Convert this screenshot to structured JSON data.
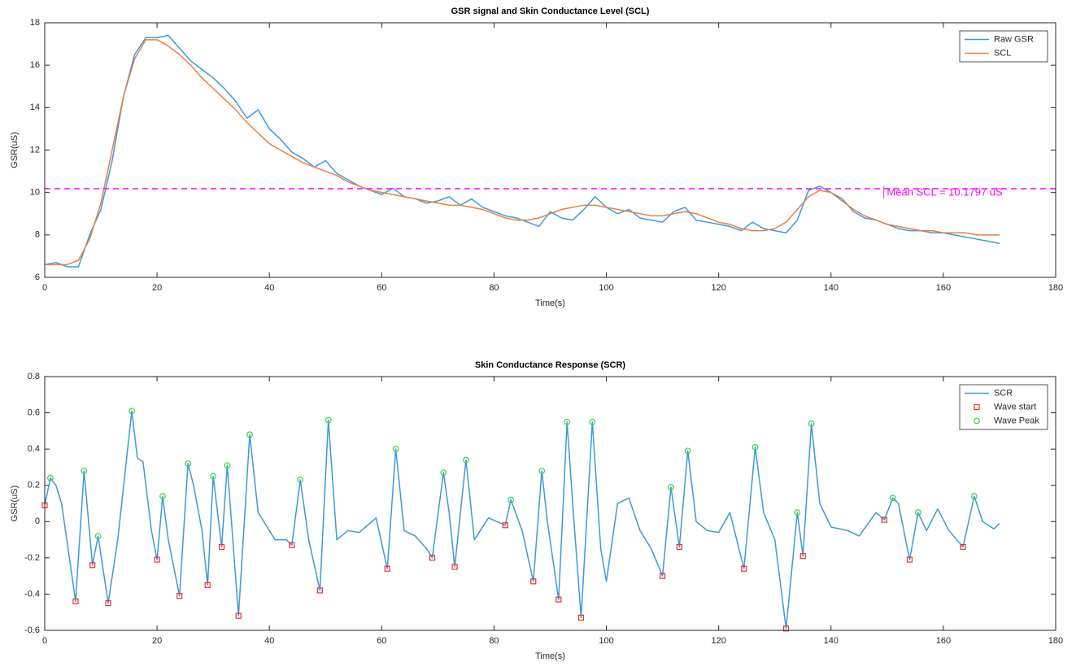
{
  "chart_data": [
    {
      "type": "line",
      "title": "GSR signal and Skin Conductance Level (SCL)",
      "xlabel": "Time(s)",
      "ylabel": "GSR(uS)",
      "xlim": [
        0,
        180
      ],
      "ylim": [
        6,
        18
      ],
      "xticks": [
        0,
        20,
        40,
        60,
        80,
        100,
        120,
        140,
        160,
        180
      ],
      "yticks": [
        6,
        8,
        10,
        12,
        14,
        16,
        18
      ],
      "legend": "northeast",
      "x": [
        0,
        2,
        4,
        6,
        8,
        10,
        12,
        14,
        16,
        18,
        20,
        22,
        24,
        26,
        28,
        30,
        32,
        34,
        36,
        38,
        40,
        42,
        44,
        46,
        48,
        50,
        52,
        54,
        56,
        58,
        60,
        62,
        64,
        66,
        68,
        70,
        72,
        74,
        76,
        78,
        80,
        82,
        84,
        86,
        88,
        90,
        92,
        94,
        96,
        98,
        100,
        102,
        104,
        106,
        108,
        110,
        112,
        114,
        116,
        118,
        120,
        122,
        124,
        126,
        128,
        130,
        132,
        134,
        136,
        138,
        140,
        142,
        144,
        146,
        148,
        150,
        152,
        154,
        156,
        158,
        160,
        162,
        164,
        166,
        168,
        170
      ],
      "series": [
        {
          "name": "Raw GSR",
          "color": "#3d9ad6",
          "values": [
            6.6,
            6.7,
            6.5,
            6.5,
            8.0,
            9.2,
            11.5,
            14.5,
            16.5,
            17.3,
            17.3,
            17.4,
            16.8,
            16.2,
            15.8,
            15.4,
            14.9,
            14.3,
            13.5,
            13.9,
            13.0,
            12.5,
            11.9,
            11.6,
            11.2,
            11.5,
            10.9,
            10.6,
            10.3,
            10.1,
            9.9,
            10.2,
            9.8,
            9.7,
            9.5,
            9.6,
            9.8,
            9.4,
            9.7,
            9.3,
            9.1,
            8.9,
            8.8,
            8.6,
            8.4,
            9.1,
            8.8,
            8.7,
            9.2,
            9.8,
            9.3,
            9.0,
            9.2,
            8.8,
            8.7,
            8.6,
            9.1,
            9.3,
            8.7,
            8.6,
            8.5,
            8.4,
            8.2,
            8.6,
            8.3,
            8.2,
            8.1,
            8.7,
            10.1,
            10.3,
            10.0,
            9.7,
            9.1,
            8.8,
            8.7,
            8.5,
            8.3,
            8.2,
            8.2,
            8.1,
            8.1,
            8.0,
            7.9,
            7.8,
            7.7,
            7.6
          ]
        },
        {
          "name": "SCL",
          "color": "#e87f45",
          "values": [
            6.6,
            6.6,
            6.6,
            6.8,
            7.8,
            9.5,
            12.0,
            14.5,
            16.3,
            17.2,
            17.2,
            16.9,
            16.5,
            16.0,
            15.4,
            14.9,
            14.4,
            13.9,
            13.3,
            12.8,
            12.3,
            12.0,
            11.7,
            11.4,
            11.2,
            11.0,
            10.8,
            10.5,
            10.3,
            10.1,
            10.0,
            9.9,
            9.8,
            9.7,
            9.6,
            9.5,
            9.4,
            9.4,
            9.3,
            9.2,
            9.0,
            8.8,
            8.7,
            8.7,
            8.8,
            9.0,
            9.2,
            9.3,
            9.4,
            9.4,
            9.3,
            9.2,
            9.1,
            9.0,
            8.9,
            8.9,
            9.0,
            9.1,
            9.0,
            8.8,
            8.6,
            8.5,
            8.3,
            8.2,
            8.2,
            8.3,
            8.6,
            9.2,
            9.8,
            10.1,
            10.0,
            9.6,
            9.2,
            8.9,
            8.7,
            8.5,
            8.4,
            8.3,
            8.2,
            8.2,
            8.1,
            8.1,
            8.1,
            8.0,
            8.0,
            8.0
          ]
        }
      ],
      "mean_line": {
        "value": 10.1797,
        "color": "#ff00ff",
        "label": "Mean SCL = 10.1797 uS"
      }
    },
    {
      "type": "line",
      "title": "Skin Conductance Response (SCR)",
      "xlabel": "Time(s)",
      "ylabel": "GSR(uS)",
      "xlim": [
        0,
        180
      ],
      "ylim": [
        -0.6,
        0.8
      ],
      "xticks": [
        0,
        20,
        40,
        60,
        80,
        100,
        120,
        140,
        160,
        180
      ],
      "yticks": [
        -0.6,
        -0.4,
        -0.2,
        0,
        0.2,
        0.4,
        0.6,
        0.8
      ],
      "legend": "northeast",
      "series": [
        {
          "name": "SCR",
          "color": "#3d9ad6",
          "marker": "none",
          "x": [
            0,
            1,
            2,
            3,
            5.5,
            7,
            8.5,
            9.5,
            11.3,
            13,
            15.5,
            16.5,
            17.5,
            19,
            20,
            21,
            22,
            24,
            25.5,
            26.5,
            28,
            29,
            30,
            31.5,
            32.5,
            34.5,
            36.5,
            38,
            40,
            41,
            43,
            44,
            45.5,
            47,
            49,
            50.5,
            52,
            54,
            56,
            59,
            61,
            62.5,
            64,
            66,
            68,
            69,
            71,
            72,
            73,
            75,
            76.5,
            79,
            82,
            83,
            85,
            87,
            88.5,
            89.5,
            91.5,
            93,
            94,
            95.5,
            97.5,
            99,
            100,
            102,
            104,
            106,
            108,
            110,
            111.5,
            113,
            114.5,
            116,
            118,
            120,
            122,
            124.5,
            126.5,
            128,
            130,
            132,
            134,
            135,
            136.5,
            138,
            140,
            143,
            145,
            148,
            149.5,
            151,
            152,
            154,
            155.5,
            157,
            159,
            161,
            163.5,
            165.5,
            167,
            169,
            170
          ],
          "values": [
            0.09,
            0.24,
            0.2,
            0.1,
            -0.44,
            0.28,
            -0.24,
            -0.08,
            -0.45,
            -0.1,
            0.61,
            0.35,
            0.33,
            -0.05,
            -0.21,
            0.14,
            -0.1,
            -0.41,
            0.32,
            0.2,
            -0.05,
            -0.35,
            0.25,
            -0.14,
            0.31,
            -0.52,
            0.48,
            0.05,
            -0.05,
            -0.1,
            -0.1,
            -0.13,
            0.23,
            -0.1,
            -0.38,
            0.56,
            -0.1,
            -0.05,
            -0.06,
            0.02,
            -0.26,
            0.4,
            -0.05,
            -0.08,
            -0.15,
            -0.2,
            0.27,
            0.05,
            -0.25,
            0.34,
            -0.1,
            0.02,
            -0.02,
            0.12,
            -0.05,
            -0.33,
            0.28,
            0.0,
            -0.43,
            0.55,
            0.1,
            -0.53,
            0.55,
            -0.15,
            -0.33,
            0.1,
            0.13,
            -0.05,
            -0.15,
            -0.3,
            0.19,
            -0.14,
            0.39,
            0.0,
            -0.05,
            -0.06,
            0.05,
            -0.26,
            0.41,
            0.05,
            -0.1,
            -0.59,
            0.05,
            -0.19,
            0.54,
            0.1,
            -0.03,
            -0.05,
            -0.08,
            0.05,
            0.01,
            0.13,
            0.1,
            -0.21,
            0.05,
            -0.05,
            0.07,
            -0.05,
            -0.14,
            0.14,
            0.0,
            -0.04,
            -0.01
          ]
        },
        {
          "name": "Wave start",
          "color": "#e8312b",
          "marker": "square",
          "x": [
            0,
            5.5,
            8.5,
            11.3,
            20,
            24,
            29,
            31.5,
            34.5,
            44,
            49,
            61,
            69,
            73,
            82,
            87,
            91.5,
            95.5,
            110,
            113,
            124.5,
            132,
            135,
            149.5,
            154,
            163.5
          ],
          "values": [
            0.09,
            -0.44,
            -0.24,
            -0.45,
            -0.21,
            -0.41,
            -0.35,
            -0.14,
            -0.52,
            -0.13,
            -0.38,
            -0.26,
            -0.2,
            -0.25,
            -0.02,
            -0.33,
            -0.43,
            -0.53,
            -0.3,
            -0.14,
            -0.26,
            -0.59,
            -0.19,
            0.01,
            -0.21,
            -0.14
          ]
        },
        {
          "name": "Wave Peak",
          "color": "#3cd43c",
          "marker": "circle",
          "x": [
            1,
            7,
            9.5,
            15.5,
            21,
            25.5,
            30,
            32.5,
            36.5,
            45.5,
            50.5,
            62.5,
            71,
            75,
            83,
            88.5,
            93,
            97.5,
            111.5,
            114.5,
            126.5,
            134,
            136.5,
            151,
            155.5,
            165.5
          ],
          "values": [
            0.24,
            0.28,
            -0.08,
            0.61,
            0.14,
            0.32,
            0.25,
            0.31,
            0.48,
            0.23,
            0.56,
            0.4,
            0.27,
            0.34,
            0.12,
            0.28,
            0.55,
            0.55,
            0.19,
            0.39,
            0.41,
            0.05,
            0.54,
            0.13,
            0.05,
            0.14
          ]
        }
      ]
    }
  ]
}
